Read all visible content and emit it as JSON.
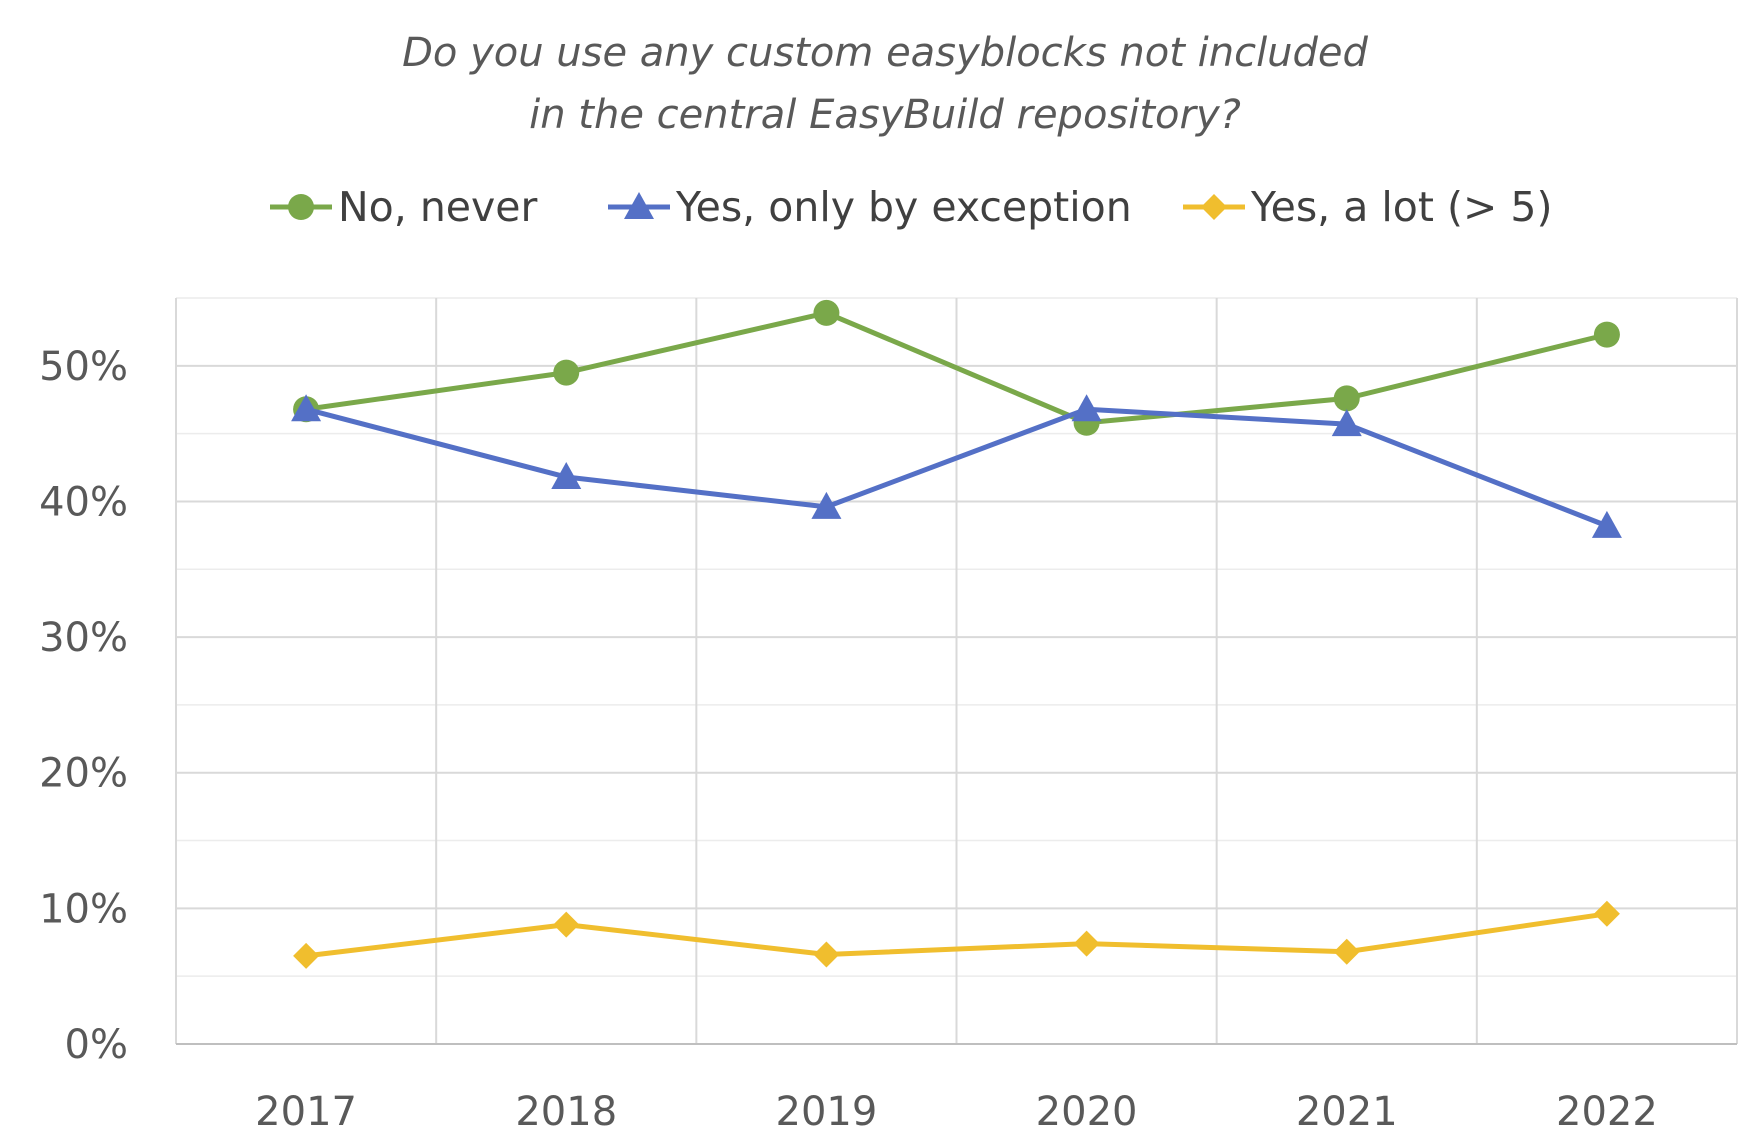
{
  "chart_data": {
    "type": "line",
    "title_lines": [
      "Do you use any custom easyblocks not included",
      "in the central EasyBuild repository?"
    ],
    "xlabel": "",
    "ylabel": "",
    "categories": [
      "2017",
      "2018",
      "2019",
      "2020",
      "2021",
      "2022"
    ],
    "ylim": [
      0,
      55
    ],
    "yticks": [
      0,
      10,
      20,
      30,
      40,
      50
    ],
    "ytick_labels": [
      "0%",
      "10%",
      "20%",
      "30%",
      "40%",
      "50%"
    ],
    "grid": true,
    "legend_position": "top",
    "series": [
      {
        "name": "No, never",
        "color": "#7aa84a",
        "marker": "circle",
        "values": [
          46.8,
          49.5,
          53.9,
          45.8,
          47.6,
          52.3
        ]
      },
      {
        "name": "Yes, only by exception",
        "color": "#5470c6",
        "marker": "triangle",
        "values": [
          46.8,
          41.8,
          39.6,
          46.8,
          45.7,
          38.2
        ]
      },
      {
        "name": "Yes, a lot (> 5)",
        "color": "#f0be2e",
        "marker": "diamond",
        "values": [
          6.5,
          8.8,
          6.6,
          7.4,
          6.8,
          9.6
        ]
      }
    ]
  }
}
